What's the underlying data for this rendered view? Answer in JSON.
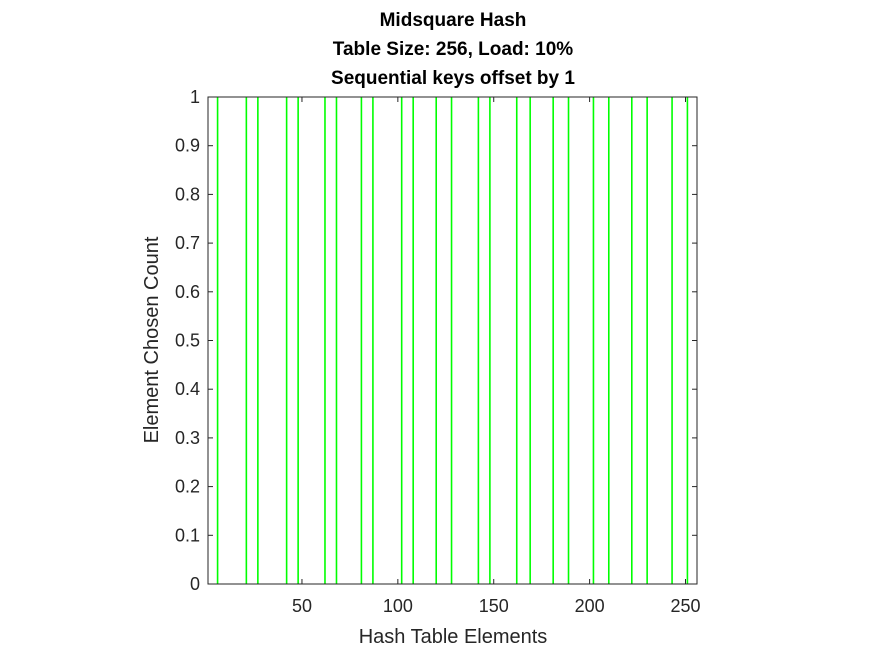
{
  "chart_data": {
    "type": "bar",
    "title_lines": [
      "Midsquare Hash",
      "Table Size: 256, Load: 10%",
      "Sequential keys offset by 1"
    ],
    "xlabel": "Hash Table Elements",
    "ylabel": "Element Chosen Count",
    "xlim": [
      1,
      256
    ],
    "ylim": [
      0,
      1
    ],
    "xticks": [
      50,
      100,
      150,
      200,
      250
    ],
    "yticks": [
      0,
      0.1,
      0.2,
      0.3,
      0.4,
      0.5,
      0.6,
      0.7,
      0.8,
      0.9,
      1
    ],
    "bar_color": "#00ff00",
    "grid": false,
    "x": [
      6,
      21,
      27,
      42,
      48,
      62,
      68,
      81,
      87,
      102,
      108,
      120,
      128,
      142,
      148,
      162,
      169,
      181,
      189,
      202,
      210,
      222,
      230,
      243,
      251
    ],
    "values": [
      1,
      1,
      1,
      1,
      1,
      1,
      1,
      1,
      1,
      1,
      1,
      1,
      1,
      1,
      1,
      1,
      1,
      1,
      1,
      1,
      1,
      1,
      1,
      1,
      1
    ]
  }
}
